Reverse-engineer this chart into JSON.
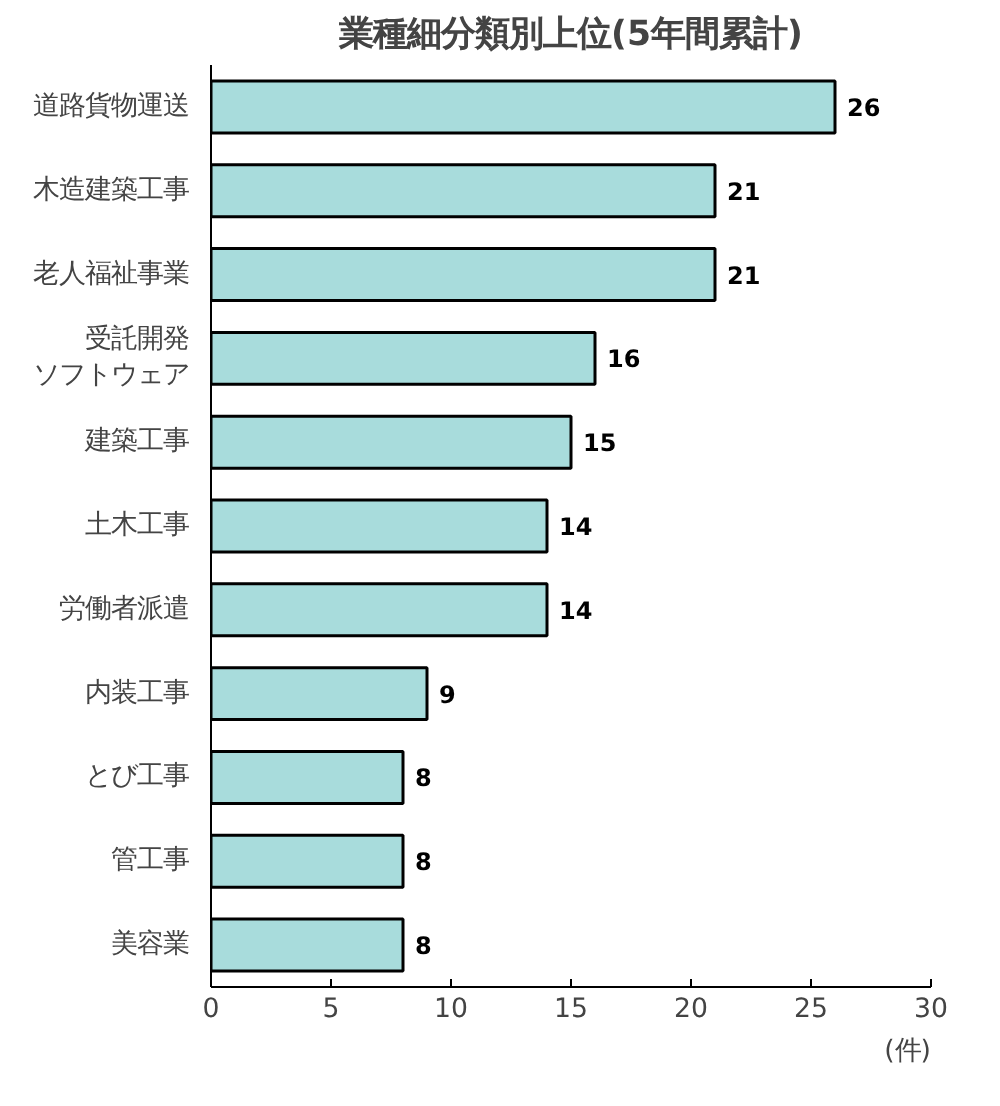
{
  "chart_data": {
    "type": "bar",
    "orientation": "horizontal",
    "title": "業種細分類別上位(5年間累計)",
    "xlabel": "(件)",
    "categories": [
      "道路貨物運送",
      "木造建築工事",
      "老人福祉事業",
      "受託開発ソフトウェア",
      "建築工事",
      "土木工事",
      "労働者派遣",
      "内装工事",
      "とび工事",
      "管工事",
      "美容業"
    ],
    "values": [
      26,
      21,
      21,
      16,
      15,
      14,
      14,
      9,
      8,
      8,
      8
    ],
    "color": "#a8dcdc",
    "xlim": [
      0,
      30
    ],
    "xticks": [
      0,
      5,
      10,
      15,
      20,
      25,
      30
    ],
    "data_labels": true,
    "grid": false
  }
}
